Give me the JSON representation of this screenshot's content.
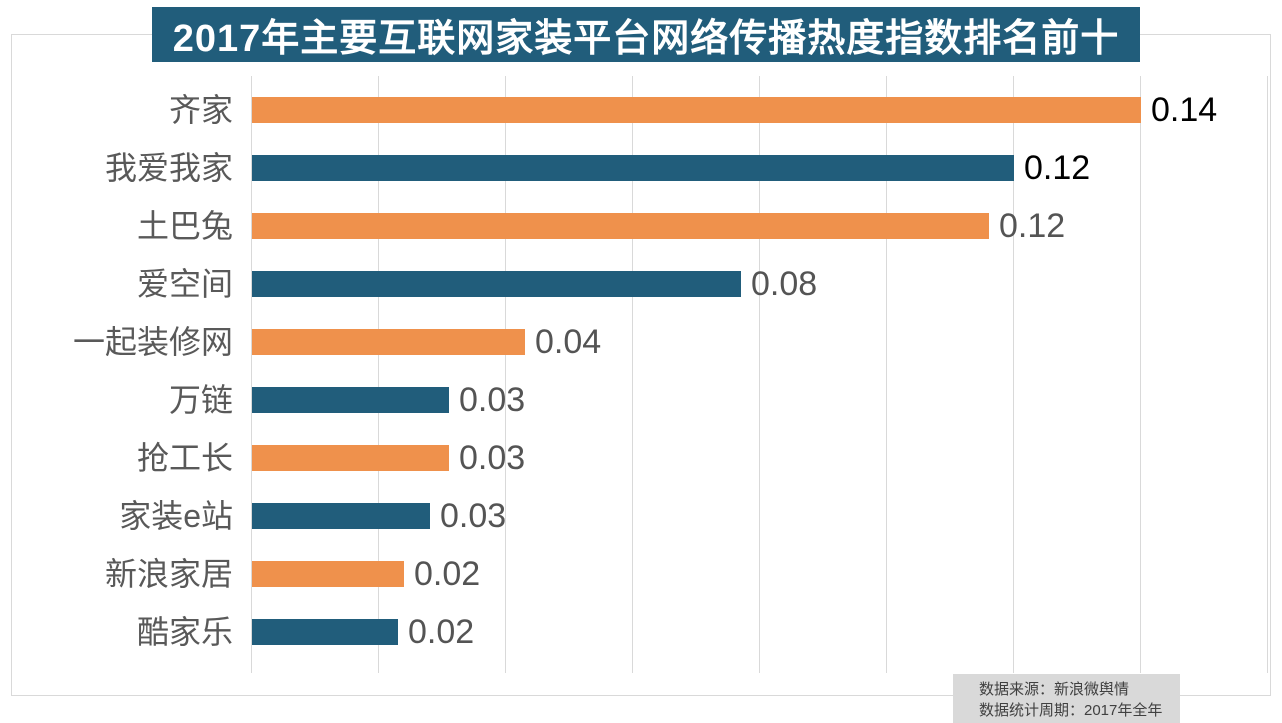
{
  "chart_data": {
    "type": "bar",
    "orientation": "horizontal",
    "title": "2017年主要互联网家装平台网络传播热度指数排名前十",
    "categories": [
      "齐家",
      "我爱我家",
      "土巴兔",
      "爱空间",
      "一起装修网",
      "万链",
      "抢工长",
      "家装e站",
      "新浪家居",
      "酷家乐"
    ],
    "values": [
      0.14,
      0.12,
      0.12,
      0.08,
      0.04,
      0.03,
      0.03,
      0.03,
      0.02,
      0.02
    ],
    "value_labels": [
      "0.14",
      "0.12",
      "0.12",
      "0.08",
      "0.04",
      "0.03",
      "0.03",
      "0.03",
      "0.02",
      "0.02"
    ],
    "bar_lengths": [
      0.14,
      0.12,
      0.116,
      0.077,
      0.043,
      0.031,
      0.031,
      0.028,
      0.024,
      0.023
    ],
    "bar_colors": [
      "#EF914C",
      "#215D7B",
      "#EF914C",
      "#215D7B",
      "#EF914C",
      "#215D7B",
      "#EF914C",
      "#215D7B",
      "#EF914C",
      "#215D7B"
    ],
    "value_label_colors": [
      "#000000",
      "#000000",
      "#545454",
      "#545454",
      "#545454",
      "#545454",
      "#545454",
      "#545454",
      "#545454",
      "#545454"
    ],
    "xlim": [
      0,
      0.16
    ],
    "gridline_step": 0.02,
    "grid": true,
    "legend": "none",
    "xlabel": "",
    "ylabel": ""
  },
  "source": {
    "line1": "数据来源：新浪微舆情",
    "line2": "数据统计周期：2017年全年"
  },
  "colors": {
    "orange": "#EF914C",
    "blue": "#215D7B",
    "title_bg": "#215D7B",
    "title_text": "#FFFFFF",
    "gridline": "#D9D9D9",
    "border": "#D9D9D9",
    "category_text": "#595959",
    "source_bg": "#D9D9D9",
    "source_text": "#404040"
  }
}
